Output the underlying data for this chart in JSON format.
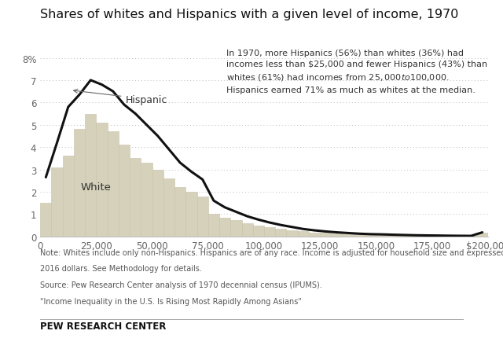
{
  "title": "Shares of whites and Hispanics with a given level of income, 1970",
  "title_fontsize": 11.5,
  "background_color": "#ffffff",
  "bar_color": "#d6d1bb",
  "bar_edge_color": "#c8c2a8",
  "line_color": "#111111",
  "line_width": 2.2,
  "ylim": [
    0,
    8.5
  ],
  "yticks": [
    0,
    1,
    2,
    3,
    4,
    5,
    6,
    7,
    8
  ],
  "ytick_labels": [
    "0",
    "1",
    "2",
    "3",
    "4",
    "5",
    "6",
    "7",
    "8%"
  ],
  "annotation_text": "In 1970, more Hispanics (56%) than whites (36%) had\nincomes less than $25,000 and fewer Hispanics (43%) than\nwhites (61%) had incomes from $25,000 to $100,000.\nHispanics earned 71% as much as whites at the median.",
  "white_label": "White",
  "hispanic_label": "Hispanic",
  "note_line1": "Note: Whites include only non-Hispanics. Hispanics are of any race. Income is adjusted for household size and expressed in",
  "note_line2": "2016 dollars. See Methodology for details.",
  "source_line1": "Source: Pew Research Center analysis of 1970 decennial census (IPUMS).",
  "source_line2": "\"Income Inequality in the U.S. Is Rising Most Rapidly Among Asians\"",
  "brand": "PEW RESEARCH CENTER",
  "white_bars": [
    1.5,
    3.1,
    3.6,
    4.8,
    5.5,
    5.1,
    4.7,
    4.1,
    3.5,
    3.3,
    3.0,
    2.6,
    2.2,
    2.0,
    1.8,
    1.0,
    0.85,
    0.72,
    0.6,
    0.5,
    0.42,
    0.35,
    0.28,
    0.22,
    0.18,
    0.15,
    0.12,
    0.1,
    0.09,
    0.08,
    0.07,
    0.06,
    0.05,
    0.04,
    0.035,
    0.03,
    0.025,
    0.02,
    0.018,
    0.15
  ],
  "hispanic_line": [
    2.65,
    4.2,
    5.8,
    6.35,
    7.0,
    6.8,
    6.5,
    5.9,
    5.5,
    5.0,
    4.5,
    3.9,
    3.3,
    2.9,
    2.55,
    1.6,
    1.3,
    1.1,
    0.9,
    0.75,
    0.62,
    0.51,
    0.42,
    0.33,
    0.27,
    0.22,
    0.18,
    0.15,
    0.12,
    0.1,
    0.09,
    0.075,
    0.062,
    0.05,
    0.043,
    0.037,
    0.03,
    0.025,
    0.022,
    0.18
  ],
  "bin_edges": [
    0,
    5000,
    10000,
    15000,
    20000,
    25000,
    30000,
    35000,
    40000,
    45000,
    50000,
    55000,
    60000,
    65000,
    70000,
    75000,
    80000,
    85000,
    90000,
    95000,
    100000,
    105000,
    110000,
    115000,
    120000,
    125000,
    130000,
    135000,
    140000,
    145000,
    150000,
    155000,
    160000,
    165000,
    170000,
    175000,
    180000,
    185000,
    190000,
    195000,
    200000
  ],
  "xtick_positions": [
    0,
    25000,
    50000,
    75000,
    100000,
    125000,
    150000,
    175000,
    200000
  ],
  "xtick_labels": [
    "0",
    "25,000",
    "50,000",
    "75,000",
    "100,000",
    "125,000",
    "150,000",
    "175,000",
    "$200,000"
  ]
}
